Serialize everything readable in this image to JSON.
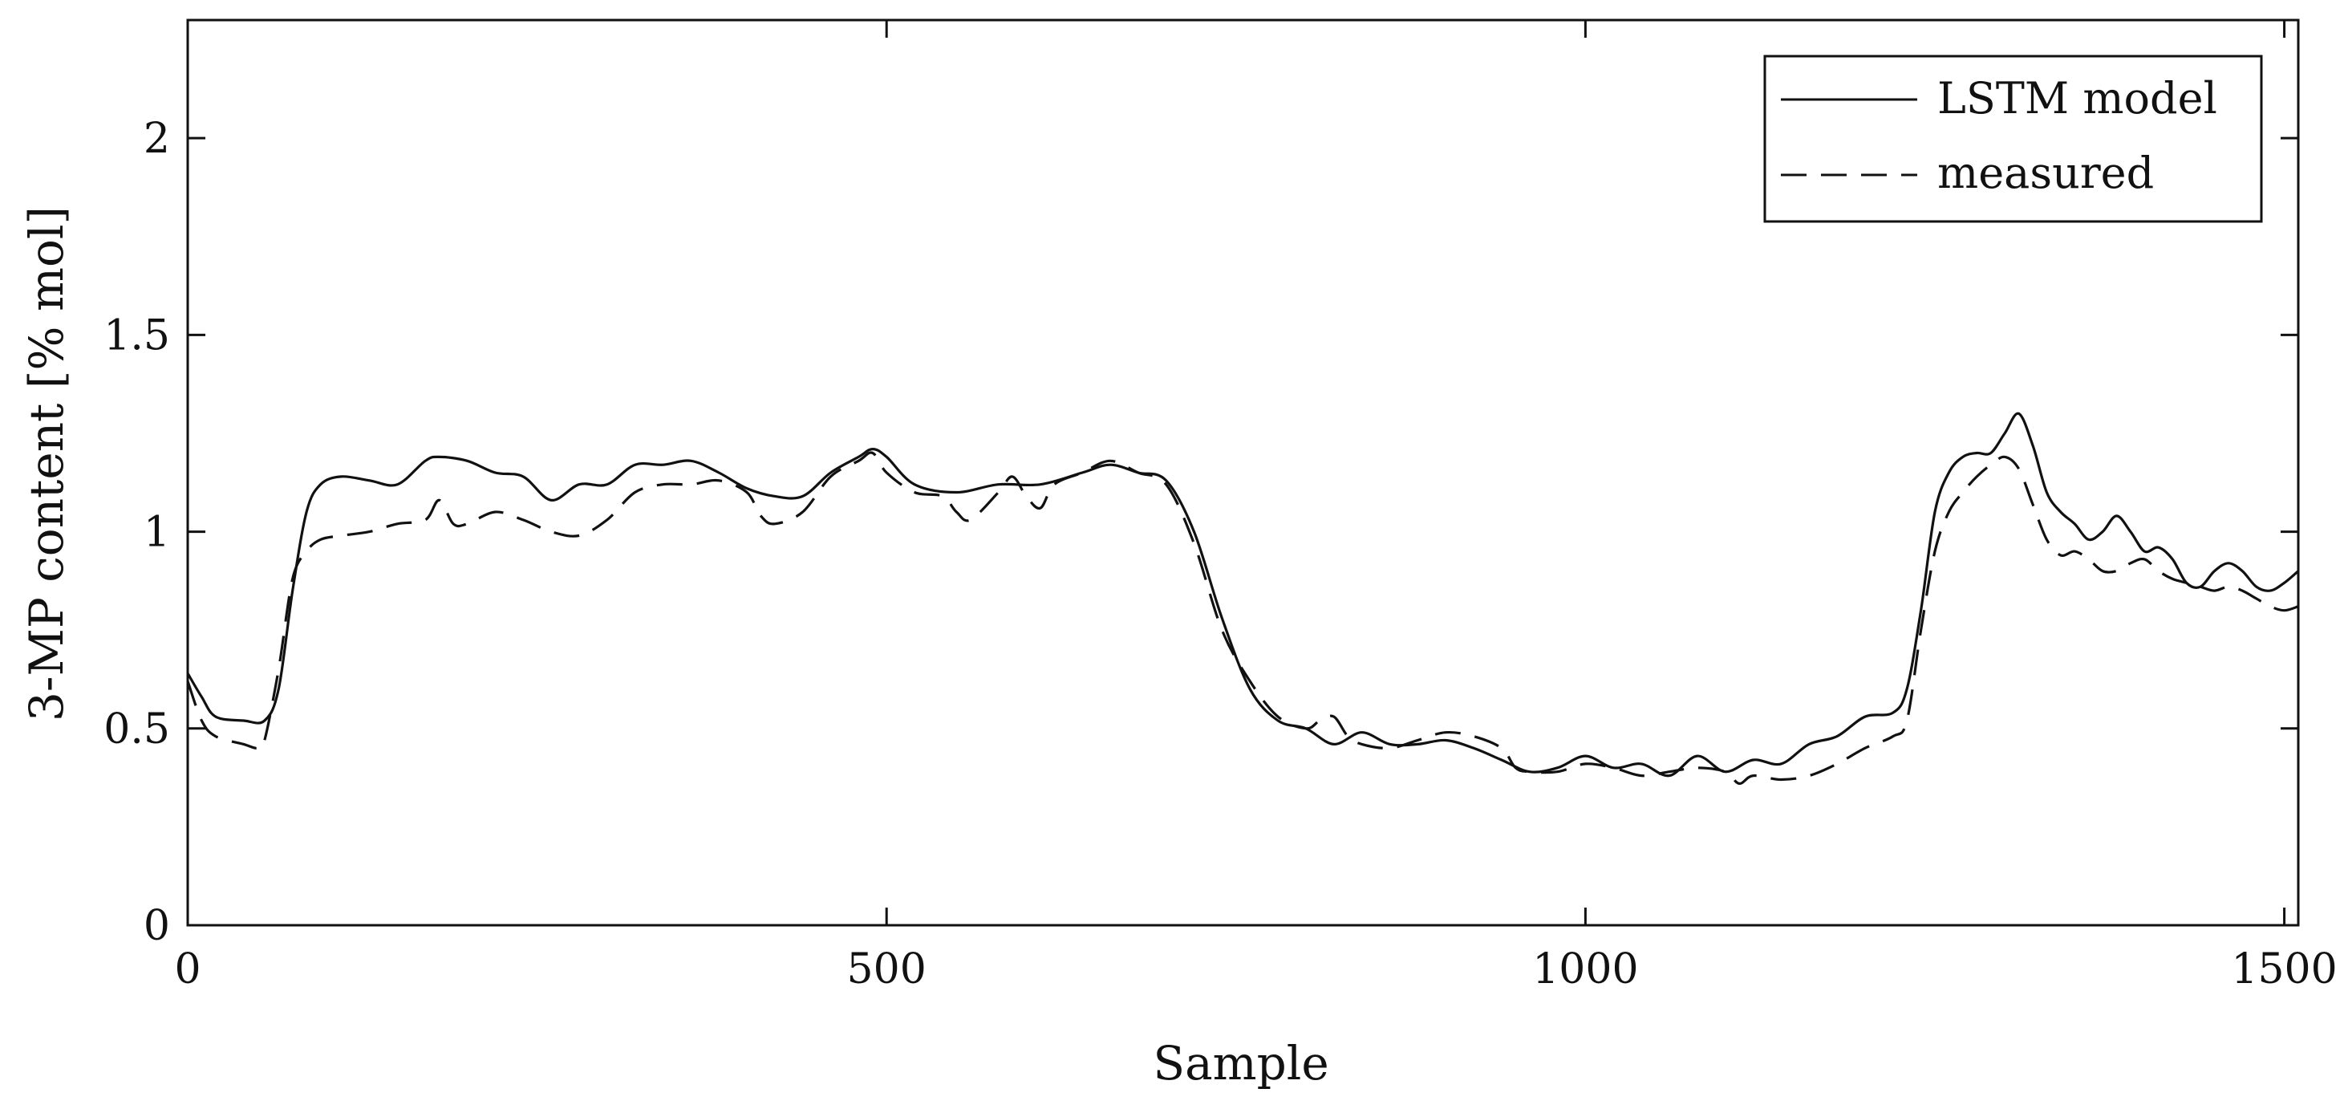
{
  "chart_data": {
    "type": "line",
    "title": "",
    "xlabel": "Sample",
    "ylabel": "3-MP content [% mol]",
    "xlim": [
      0,
      1510
    ],
    "ylim": [
      0,
      2.3
    ],
    "xticks": [
      0,
      500,
      1000,
      1500
    ],
    "xtick_labels": [
      "0",
      "500",
      "1000",
      "1500"
    ],
    "yticks": [
      0,
      0.5,
      1,
      1.5,
      2
    ],
    "ytick_labels": [
      "0",
      "0.5",
      "1",
      "1.5",
      "2"
    ],
    "grid": false,
    "legend_position": "top-right",
    "series": [
      {
        "name": "LSTM model",
        "style": "solid",
        "color": "#111111",
        "x": [
          0,
          10,
          20,
          40,
          55,
          65,
          75,
          85,
          95,
          110,
          130,
          150,
          170,
          180,
          200,
          220,
          240,
          260,
          280,
          300,
          320,
          340,
          360,
          380,
          400,
          420,
          440,
          460,
          480,
          490,
          500,
          520,
          550,
          580,
          610,
          640,
          660,
          680,
          700,
          720,
          740,
          760,
          780,
          800,
          820,
          840,
          860,
          880,
          900,
          920,
          940,
          960,
          980,
          1000,
          1020,
          1040,
          1060,
          1080,
          1100,
          1120,
          1140,
          1160,
          1180,
          1200,
          1220,
          1230,
          1240,
          1250,
          1260,
          1270,
          1280,
          1290,
          1300,
          1310,
          1320,
          1330,
          1340,
          1350,
          1360,
          1370,
          1380,
          1390,
          1400,
          1410,
          1420,
          1430,
          1440,
          1450,
          1460,
          1470,
          1480,
          1490,
          1500,
          1510
        ],
        "values": [
          0.64,
          0.58,
          0.53,
          0.52,
          0.52,
          0.6,
          0.85,
          1.05,
          1.12,
          1.14,
          1.13,
          1.12,
          1.18,
          1.19,
          1.18,
          1.15,
          1.14,
          1.08,
          1.12,
          1.12,
          1.17,
          1.17,
          1.18,
          1.15,
          1.11,
          1.09,
          1.09,
          1.15,
          1.19,
          1.21,
          1.19,
          1.12,
          1.1,
          1.12,
          1.12,
          1.15,
          1.17,
          1.15,
          1.13,
          1.0,
          0.78,
          0.6,
          0.52,
          0.5,
          0.46,
          0.49,
          0.46,
          0.46,
          0.47,
          0.45,
          0.42,
          0.39,
          0.4,
          0.43,
          0.4,
          0.41,
          0.38,
          0.43,
          0.39,
          0.42,
          0.41,
          0.46,
          0.48,
          0.53,
          0.54,
          0.6,
          0.8,
          1.05,
          1.15,
          1.19,
          1.2,
          1.2,
          1.25,
          1.3,
          1.22,
          1.1,
          1.05,
          1.02,
          0.98,
          1.0,
          1.04,
          1.0,
          0.95,
          0.96,
          0.93,
          0.87,
          0.86,
          0.9,
          0.92,
          0.9,
          0.86,
          0.85,
          0.87,
          0.9
        ]
      },
      {
        "name": "measured",
        "style": "dashed",
        "color": "#111111",
        "x": [
          0,
          10,
          20,
          40,
          50,
          55,
          65,
          75,
          85,
          95,
          110,
          130,
          150,
          170,
          180,
          190,
          200,
          220,
          240,
          260,
          280,
          300,
          320,
          340,
          360,
          380,
          400,
          410,
          420,
          440,
          460,
          480,
          490,
          500,
          520,
          540,
          550,
          560,
          580,
          590,
          600,
          610,
          620,
          640,
          660,
          680,
          700,
          720,
          740,
          760,
          780,
          800,
          810,
          820,
          830,
          840,
          860,
          880,
          900,
          920,
          940,
          950,
          960,
          980,
          1000,
          1020,
          1040,
          1060,
          1080,
          1100,
          1110,
          1120,
          1140,
          1160,
          1180,
          1200,
          1220,
          1230,
          1240,
          1250,
          1260,
          1270,
          1280,
          1290,
          1300,
          1310,
          1320,
          1330,
          1340,
          1350,
          1360,
          1370,
          1380,
          1390,
          1400,
          1410,
          1420,
          1430,
          1440,
          1450,
          1460,
          1470,
          1480,
          1490,
          1500,
          1510
        ],
        "values": [
          0.62,
          0.52,
          0.48,
          0.46,
          0.45,
          0.47,
          0.65,
          0.88,
          0.95,
          0.98,
          0.99,
          1.0,
          1.02,
          1.03,
          1.08,
          1.02,
          1.02,
          1.05,
          1.03,
          1.0,
          0.99,
          1.03,
          1.1,
          1.12,
          1.12,
          1.13,
          1.1,
          1.04,
          1.02,
          1.05,
          1.14,
          1.18,
          1.2,
          1.15,
          1.1,
          1.09,
          1.05,
          1.03,
          1.1,
          1.14,
          1.09,
          1.06,
          1.12,
          1.15,
          1.18,
          1.15,
          1.12,
          0.97,
          0.75,
          0.62,
          0.53,
          0.5,
          0.52,
          0.53,
          0.48,
          0.46,
          0.45,
          0.47,
          0.49,
          0.48,
          0.45,
          0.4,
          0.39,
          0.39,
          0.41,
          0.4,
          0.38,
          0.39,
          0.4,
          0.39,
          0.36,
          0.38,
          0.37,
          0.38,
          0.41,
          0.45,
          0.48,
          0.52,
          0.75,
          0.95,
          1.05,
          1.1,
          1.14,
          1.17,
          1.19,
          1.16,
          1.07,
          0.98,
          0.94,
          0.95,
          0.93,
          0.9,
          0.9,
          0.92,
          0.93,
          0.9,
          0.88,
          0.87,
          0.86,
          0.85,
          0.86,
          0.85,
          0.83,
          0.81,
          0.8,
          0.81
        ]
      }
    ]
  }
}
